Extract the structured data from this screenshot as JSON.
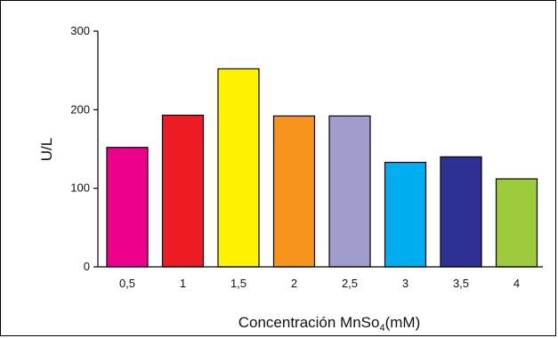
{
  "chart_data": {
    "type": "bar",
    "categories": [
      "0,5",
      "1",
      "1,5",
      "2",
      "2,5",
      "3",
      "3,5",
      "4"
    ],
    "values": [
      152,
      193,
      252,
      192,
      192,
      133,
      140,
      112
    ],
    "colors": [
      "#ec008c",
      "#ed1c24",
      "#fff200",
      "#f7941d",
      "#a09ccc",
      "#00aeef",
      "#2e3192",
      "#9dcb3c"
    ],
    "ylabel": "U/L",
    "xlabel_prefix": "Concentración MnSo",
    "xlabel_subscript": "4",
    "xlabel_suffix": "(mM)",
    "ylim": [
      0,
      300
    ],
    "yticks": [
      0,
      100,
      200,
      300
    ],
    "grid": false
  }
}
